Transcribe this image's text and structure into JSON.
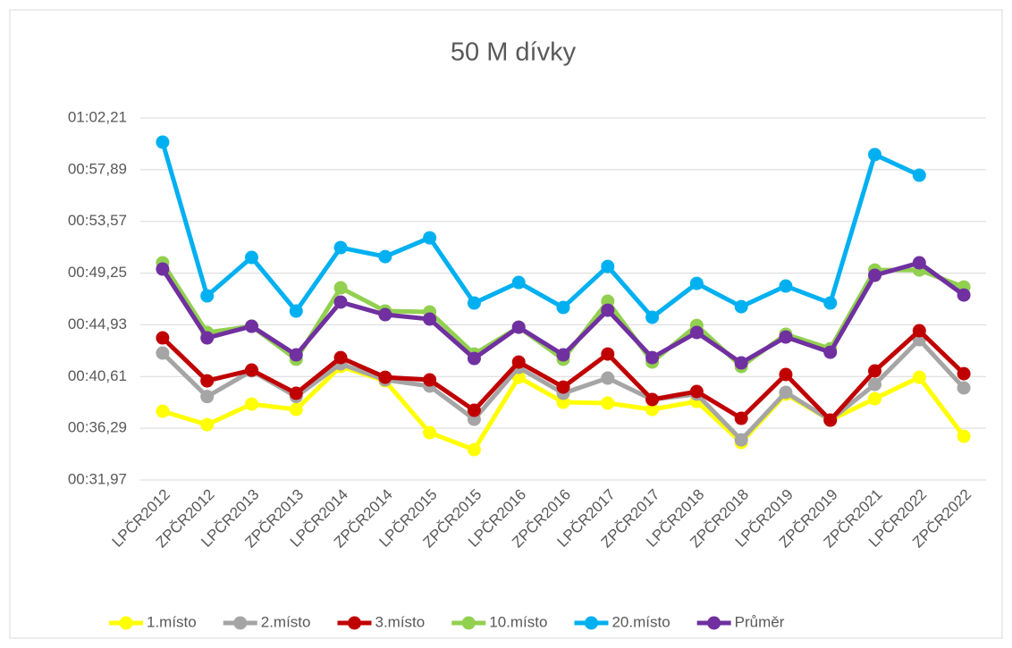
{
  "chart_data": {
    "type": "line",
    "title": "50 M dívky",
    "categories": [
      "LPČR2012",
      "ZPČR2012",
      "LPČR2013",
      "ZPČR2013",
      "LPČR2014",
      "ZPČR2014",
      "LPČR2015",
      "ZPČR2015",
      "LPČR2016",
      "ZPČR2016",
      "LPČR2017",
      "ZPČR2017",
      "LPČR2018",
      "ZPČR2018",
      "LPČR2019",
      "ZPČR2019",
      "ZPČR2021",
      "LPČR2022",
      "ZPČR2022"
    ],
    "ylim": [
      31.97,
      62.21
    ],
    "yticks": [
      {
        "value": 31.97,
        "label": "00:31,97"
      },
      {
        "value": 36.29,
        "label": "00:36,29"
      },
      {
        "value": 40.61,
        "label": "00:40,61"
      },
      {
        "value": 44.93,
        "label": "00:44,93"
      },
      {
        "value": 49.25,
        "label": "00:49,25"
      },
      {
        "value": 53.57,
        "label": "00:53,57"
      },
      {
        "value": 57.89,
        "label": "00:57,89"
      },
      {
        "value": 62.21,
        "label": "01:02,21"
      }
    ],
    "grid": true,
    "legend": "bottom",
    "series": [
      {
        "name": "1.místo",
        "color": "#ffff00",
        "values": [
          37.71,
          36.59,
          38.31,
          37.86,
          41.45,
          40.25,
          35.92,
          34.5,
          40.55,
          38.46,
          38.39,
          37.86,
          38.53,
          35.1,
          39.14,
          36.97,
          38.76,
          40.55,
          35.62
        ]
      },
      {
        "name": "2.místo",
        "color": "#a5a5a5",
        "values": [
          42.57,
          38.94,
          41.08,
          38.94,
          41.67,
          40.33,
          39.81,
          37.04,
          41.37,
          39.21,
          40.48,
          38.69,
          39.14,
          35.32,
          39.29,
          36.97,
          39.95,
          43.69,
          39.66
        ]
      },
      {
        "name": "3.místo",
        "color": "#c00000",
        "values": [
          43.84,
          40.25,
          41.15,
          39.21,
          42.19,
          40.55,
          40.33,
          37.79,
          41.82,
          39.73,
          42.49,
          38.69,
          39.36,
          37.12,
          40.78,
          36.97,
          41.08,
          44.44,
          40.85
        ]
      },
      {
        "name": "10.místo",
        "color": "#92d050",
        "values": [
          50.11,
          44.29,
          44.81,
          42.05,
          48.02,
          46.08,
          46.01,
          42.49,
          44.73,
          42.05,
          46.9,
          41.82,
          44.88,
          41.45,
          44.14,
          42.94,
          49.51,
          49.51,
          48.09
        ]
      },
      {
        "name": "20.místo",
        "color": "#00b0f0",
        "values": [
          60.19,
          47.35,
          50.56,
          46.08,
          51.38,
          50.63,
          52.2,
          46.75,
          48.47,
          46.38,
          49.81,
          45.56,
          48.39,
          46.45,
          48.17,
          46.75,
          59.15,
          57.43,
          null
        ]
      },
      {
        "name": "Průměr",
        "color": "#7030a0",
        "values": [
          49.59,
          43.84,
          44.81,
          42.42,
          46.83,
          45.78,
          45.41,
          42.12,
          44.73,
          42.42,
          46.15,
          42.19,
          44.29,
          41.75,
          43.91,
          42.64,
          49.07,
          50.11,
          47.42
        ]
      }
    ]
  }
}
